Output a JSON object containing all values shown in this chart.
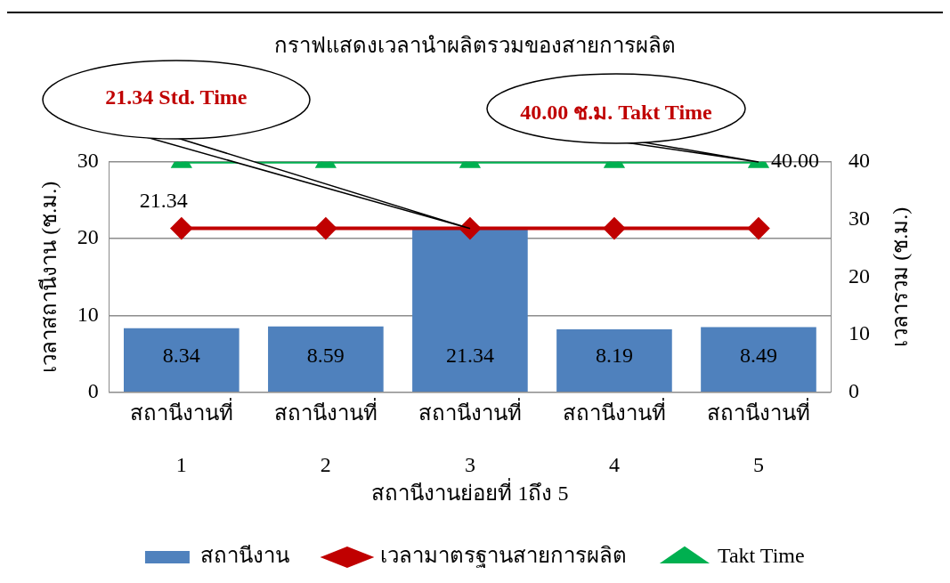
{
  "chart_data": {
    "type": "bar",
    "title": "กราฟแสดงเวลานำผลิตรวมของสายการผลิต",
    "xlabel": "สถานีงานย่อยที่ 1ถึง 5",
    "ylabel": "เวลาสถานีงาน (ช.ม.)",
    "y2label": "เวลารวม (ช.ม.)",
    "categories": [
      "สถานีงานที่ 1",
      "สถานีงานที่ 2",
      "สถานีงานที่ 3",
      "สถานีงานที่ 4",
      "สถานีงานที่ 5"
    ],
    "series": [
      {
        "name": "สถานีงาน",
        "color": "#4f81bd",
        "values": [
          8.34,
          8.59,
          21.34,
          8.19,
          8.49
        ],
        "value_labels": [
          "8.34",
          "8.59",
          "21.34",
          "8.19",
          "8.49"
        ]
      },
      {
        "name": "เวลามาตรฐานสายการผลิต",
        "type": "line",
        "color": "#c00000",
        "marker": "diamond",
        "values": [
          21.34,
          21.34,
          21.34,
          21.34,
          21.34
        ],
        "value_labels": [
          "21.34",
          null,
          null,
          null,
          null
        ]
      },
      {
        "name": "Takt Time",
        "type": "line",
        "color": "#00b050",
        "marker": "triangle",
        "axis": "y2",
        "values": [
          40,
          40,
          40,
          40,
          40
        ],
        "value_labels": [
          null,
          null,
          null,
          null,
          "40.00"
        ]
      }
    ],
    "ylim": [
      0,
      30
    ],
    "yticks": [
      0,
      10,
      20,
      30
    ],
    "y2lim": [
      0,
      40
    ],
    "y2ticks": [
      0,
      10,
      20,
      30,
      40
    ],
    "grid": "y",
    "legend": "bottom",
    "annotations": [
      {
        "text": "21.34 Std. Time",
        "x": "สถานีงานที่ 3",
        "y": 21.34
      },
      {
        "text": "40.00 ช.ม. Takt Time",
        "x": "สถานีงานที่ 5",
        "y": 30
      }
    ]
  }
}
